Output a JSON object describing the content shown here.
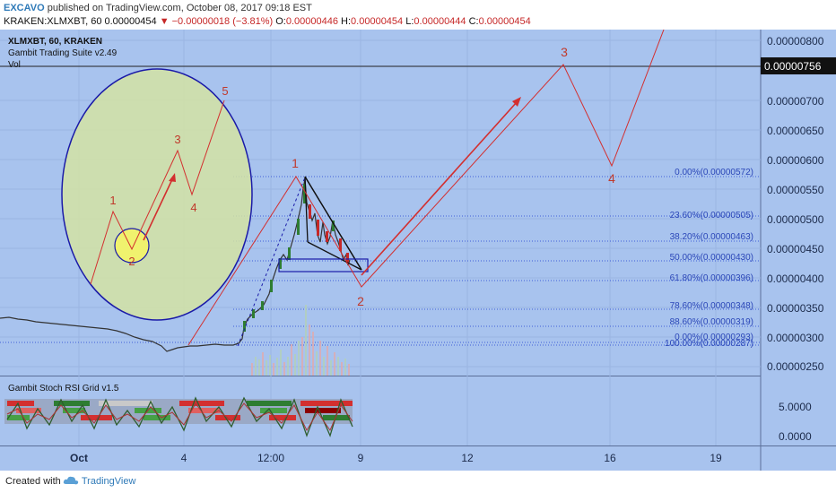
{
  "header": {
    "author": "EXCAVO",
    "published": "published on TradingView.com, October 08, 2017 09:18 EST",
    "symbol": "KRAKEN:XLMXBT, 60",
    "last": "0.00000454",
    "change": "▼ −0.00000018 (−3.81%)",
    "open_label": "O:",
    "open": "0.00000446",
    "high_label": "H:",
    "high": "0.00000454",
    "low_label": "L:",
    "low": "0.00000444",
    "close_label": "C:",
    "close": "0.00000454"
  },
  "legend": {
    "symbol": "XLMXBT, 60, KRAKEN",
    "indicator": "Gambit Trading Suite v2.49",
    "vol": "Vol",
    "oscillator": "Gambit Stoch RSI Grid v1.5"
  },
  "price_axis": {
    "labels": [
      "0.00000800",
      "0.00000700",
      "0.00000650",
      "0.00000600",
      "0.00000550",
      "0.00000500",
      "0.00000450",
      "0.00000400",
      "0.00000350",
      "0.00000300",
      "0.00000250"
    ],
    "current": "0.00000756"
  },
  "osc_axis": {
    "labels": [
      "5.0000",
      "0.0000"
    ]
  },
  "time_axis": {
    "labels": [
      "Oct",
      "4",
      "12:00",
      "9",
      "12",
      "16",
      "19"
    ]
  },
  "fib_levels": [
    {
      "label": "0.00%(0.00000572)"
    },
    {
      "label": "23.60%(0.00000505)"
    },
    {
      "label": "38.20%(0.00000463)"
    },
    {
      "label": "50.00%(0.00000430)"
    },
    {
      "label": "61.80%(0.00000396)"
    },
    {
      "label": "78.60%(0.00000348)"
    },
    {
      "label": "88.60%(0.00000319)"
    },
    {
      "label": "0.00%(0.00000293)"
    },
    {
      "label": "100.00%(0.00000287)"
    }
  ],
  "wave_labels": {
    "inset": [
      "1",
      "2",
      "3",
      "4",
      "5"
    ],
    "main": [
      "1",
      "2",
      "3",
      "4"
    ]
  },
  "footer": {
    "created": "Created with",
    "brand": "TradingView"
  },
  "colors": {
    "chart_bg": "#a8c3ee",
    "wave": "#d32f2f",
    "circle": "#1a1aa8",
    "inset_fill": "#d4e3a3",
    "fib": "#3f5fd8",
    "candle_up": "#2e7d32",
    "candle_down": "#c62828"
  }
}
